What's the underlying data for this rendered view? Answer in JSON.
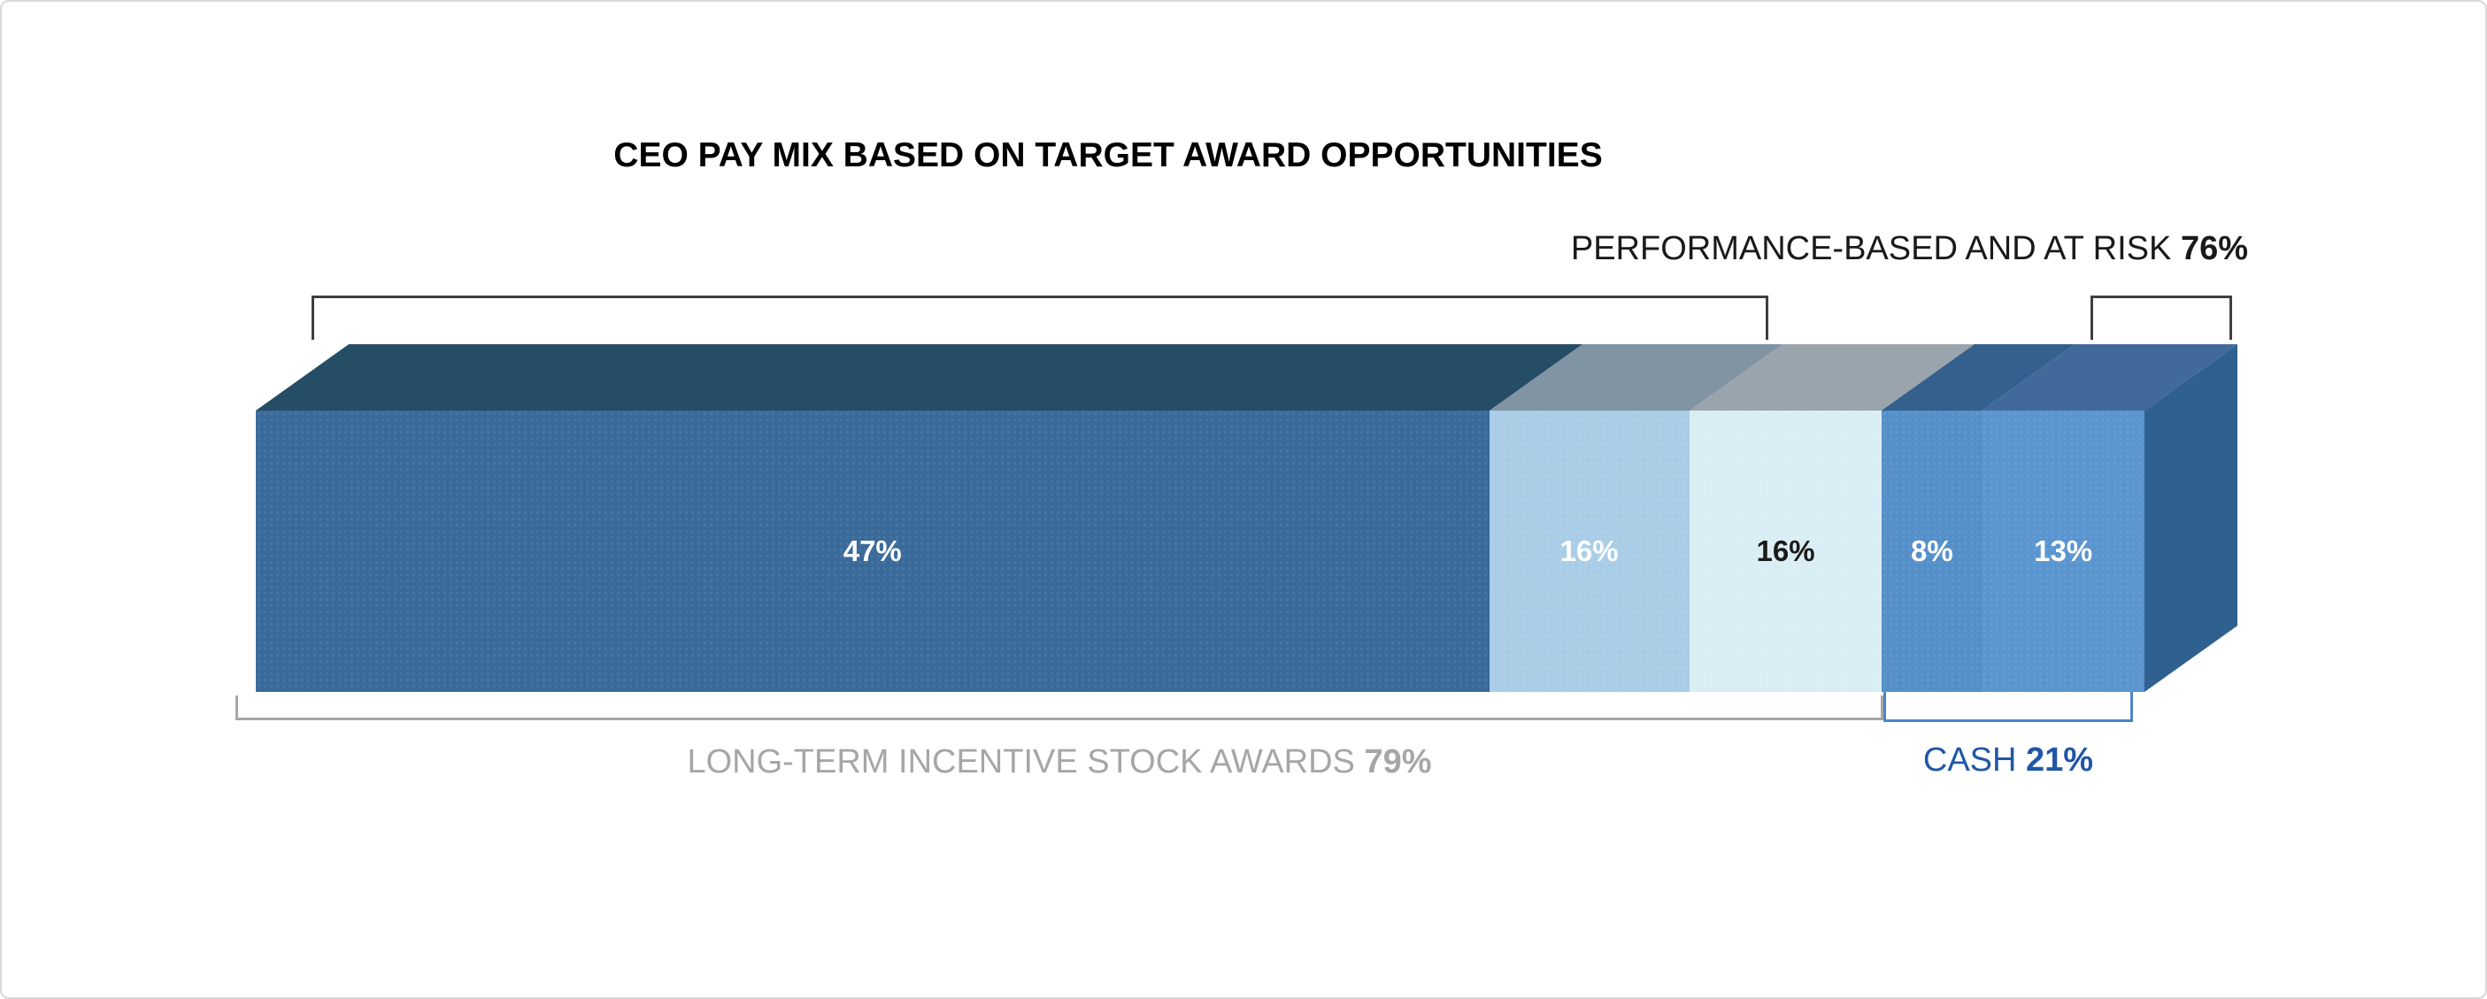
{
  "window": {
    "background": "#ffffff",
    "border_color": "#d9d9d9"
  },
  "chart_data": {
    "type": "bar",
    "subtype": "3d-horizontal-stacked-percentage",
    "title": "CEO PAY MIX BASED ON TARGET AWARD OPPORTUNITIES",
    "unit": "%",
    "legend": "none",
    "axes": "none",
    "segments": [
      {
        "name": "lti-performance-47",
        "value": 47,
        "value_label": "47%",
        "color": "#3a6a99",
        "top_color": "#264d66",
        "label_color": "#ffffff",
        "visual_width_pct": 65.3
      },
      {
        "name": "lti-16a",
        "value": 16,
        "value_label": "16%",
        "color": "#a9cde7",
        "top_color": "#8094a3",
        "label_color": "#ffffff",
        "visual_width_pct": 10.6
      },
      {
        "name": "lti-16b",
        "value": 16,
        "value_label": "16%",
        "color": "#d9eef4",
        "top_color": "#9aa4ad",
        "label_color": "#1a1a1a",
        "visual_width_pct": 10.2
      },
      {
        "name": "cash-8",
        "value": 8,
        "value_label": "8%",
        "color": "#548fc9",
        "top_color": "#33608d",
        "label_color": "#ffffff",
        "visual_width_pct": 5.3
      },
      {
        "name": "cash-13",
        "value": 13,
        "value_label": "13%",
        "color": "#5a95cf",
        "top_color": "#41699b",
        "label_color": "#ffffff",
        "visual_width_pct": 8.6
      }
    ],
    "side_face_color": "#30608f",
    "annotations": {
      "performance": {
        "label": "PERFORMANCE-BASED AND AT RISK",
        "value": "76%",
        "color": "#1a1a1a",
        "bracket_color": "#3f3f3f"
      },
      "lti": {
        "label": "LONG-TERM INCENTIVE STOCK AWARDS",
        "value": "79%",
        "color": "#a6a6a6",
        "bracket_color": "#a6a6a6"
      },
      "cash": {
        "label": "CASH",
        "value": "21%",
        "color": "#2057a6",
        "bracket_color": "#4a86c8"
      }
    }
  }
}
